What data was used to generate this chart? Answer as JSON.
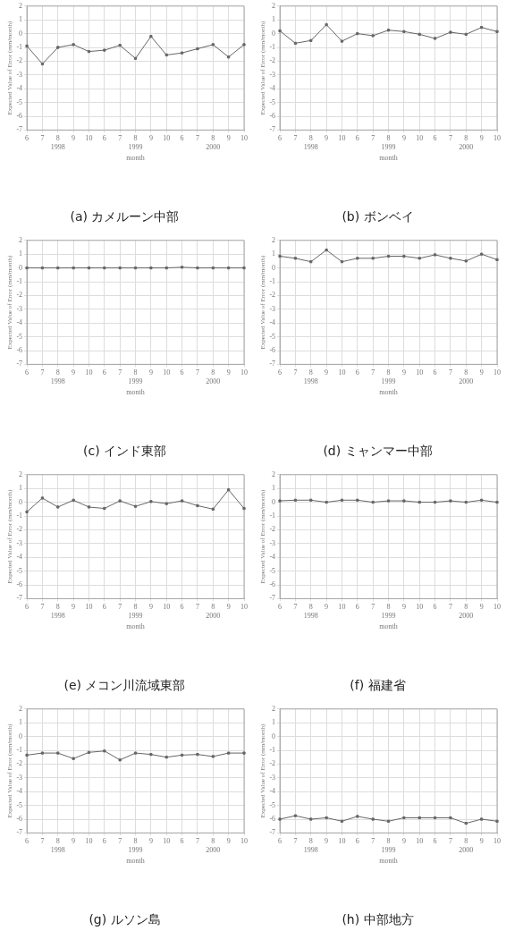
{
  "chart_data": [
    {
      "type": "line",
      "title": "(a) カメルーン中部",
      "xlabel": "month",
      "ylabel": "Expected Value of Error (mm/month)",
      "categories": [
        "6",
        "7",
        "8\n1998",
        "9",
        "10",
        "6",
        "7",
        "8\n1999",
        "9",
        "10",
        "6",
        "7",
        "8\n2000",
        "9",
        "10"
      ],
      "values": [
        -0.9,
        -2.2,
        -1.0,
        -0.8,
        -1.3,
        -1.2,
        -0.85,
        -1.8,
        -0.2,
        -1.55,
        -1.4,
        -1.1,
        -0.8,
        -1.7,
        -0.8
      ],
      "color": "#666666",
      "ylim": [
        -7,
        2
      ],
      "yticks": [
        -7,
        -6,
        -5,
        -4,
        -3,
        -2,
        -1,
        0,
        1,
        2
      ],
      "grid": true,
      "marker": "square"
    },
    {
      "type": "line",
      "title": "(b) ボンベイ",
      "xlabel": "month",
      "ylabel": "Expected Value of Error (mm/month)",
      "categories": [
        "6",
        "7",
        "8\n1998",
        "9",
        "10",
        "6",
        "7",
        "8\n1999",
        "9",
        "10",
        "6",
        "7",
        "8\n2000",
        "9",
        "10"
      ],
      "values": [
        0.2,
        -0.7,
        -0.5,
        0.65,
        -0.55,
        0.0,
        -0.15,
        0.25,
        0.15,
        -0.05,
        -0.35,
        0.1,
        -0.05,
        0.45,
        0.15
      ],
      "color": "#666666",
      "ylim": [
        -7,
        2
      ],
      "yticks": [
        -7,
        -6,
        -5,
        -4,
        -3,
        -2,
        -1,
        0,
        1,
        2
      ],
      "grid": true,
      "marker": "square"
    },
    {
      "type": "line",
      "title": "(c) インド東部",
      "xlabel": "month",
      "ylabel": "Expected Value of Error (mm/month)",
      "categories": [
        "6",
        "7",
        "8\n1998",
        "9",
        "10",
        "6",
        "7",
        "8\n1999",
        "9",
        "10",
        "6",
        "7",
        "8\n2000",
        "9",
        "10"
      ],
      "values": [
        0,
        0,
        0,
        0,
        0,
        0,
        0,
        0,
        0,
        0,
        0.05,
        0,
        0,
        0,
        0
      ],
      "color": "#666666",
      "ylim": [
        -7,
        2
      ],
      "yticks": [
        -7,
        -6,
        -5,
        -4,
        -3,
        -2,
        -1,
        0,
        1,
        2
      ],
      "grid": true,
      "marker": "square"
    },
    {
      "type": "line",
      "title": "(d) ミャンマー中部",
      "xlabel": "month",
      "ylabel": "Expected Value of Error (mm/month)",
      "categories": [
        "6",
        "7",
        "8\n1998",
        "9",
        "10",
        "6",
        "7",
        "8\n1999",
        "9",
        "10",
        "6",
        "7",
        "8\n2000",
        "9",
        "10"
      ],
      "values": [
        0.85,
        0.7,
        0.45,
        1.3,
        0.45,
        0.7,
        0.7,
        0.85,
        0.85,
        0.7,
        0.95,
        0.7,
        0.5,
        1.0,
        0.6
      ],
      "color": "#666666",
      "ylim": [
        -7,
        2
      ],
      "yticks": [
        -7,
        -6,
        -5,
        -4,
        -3,
        -2,
        -1,
        0,
        1,
        2
      ],
      "grid": true,
      "marker": "square"
    },
    {
      "type": "line",
      "title": "(e) メコン川流域東部",
      "xlabel": "month",
      "ylabel": "Expected Value of Error (mm/month)",
      "categories": [
        "6",
        "7",
        "8\n1998",
        "9",
        "10",
        "6",
        "7",
        "8\n1999",
        "9",
        "10",
        "6",
        "7",
        "8\n2000",
        "9",
        "10"
      ],
      "values": [
        -0.7,
        0.3,
        -0.35,
        0.15,
        -0.35,
        -0.45,
        0.1,
        -0.3,
        0.05,
        -0.1,
        0.1,
        -0.25,
        -0.5,
        0.9,
        -0.45
      ],
      "color": "#666666",
      "ylim": [
        -7,
        2
      ],
      "yticks": [
        -7,
        -6,
        -5,
        -4,
        -3,
        -2,
        -1,
        0,
        1,
        2
      ],
      "grid": true,
      "marker": "square"
    },
    {
      "type": "line",
      "title": "(f) 福建省",
      "xlabel": "month",
      "ylabel": "Expected Value of Error (mm/month)",
      "categories": [
        "6",
        "7",
        "8\n1998",
        "9",
        "10",
        "6",
        "7",
        "8\n1999",
        "9",
        "10",
        "6",
        "7",
        "8\n2000",
        "9",
        "10"
      ],
      "values": [
        0.1,
        0.15,
        0.15,
        0,
        0.15,
        0.15,
        0,
        0.1,
        0.1,
        0,
        0,
        0.1,
        0,
        0.15,
        0
      ],
      "color": "#666666",
      "ylim": [
        -7,
        2
      ],
      "yticks": [
        -7,
        -6,
        -5,
        -4,
        -3,
        -2,
        -1,
        0,
        1,
        2
      ],
      "grid": true,
      "marker": "square"
    },
    {
      "type": "line",
      "title": "(g) ルソン島",
      "xlabel": "month",
      "ylabel": "Expected Value of Error (mm/month)",
      "categories": [
        "6",
        "7",
        "8\n1998",
        "9",
        "10",
        "6",
        "7",
        "8\n1999",
        "9",
        "10",
        "6",
        "7",
        "8\n2000",
        "9",
        "10"
      ],
      "values": [
        -1.35,
        -1.2,
        -1.2,
        -1.6,
        -1.15,
        -1.05,
        -1.7,
        -1.2,
        -1.3,
        -1.5,
        -1.35,
        -1.3,
        -1.45,
        -1.2,
        -1.2
      ],
      "color": "#666666",
      "ylim": [
        -7,
        2
      ],
      "yticks": [
        -7,
        -6,
        -5,
        -4,
        -3,
        -2,
        -1,
        0,
        1,
        2
      ],
      "grid": true,
      "marker": "square"
    },
    {
      "type": "line",
      "title": "(h) 中部地方",
      "xlabel": "month",
      "ylabel": "Expected Value of Error (mm/month)",
      "categories": [
        "6",
        "7",
        "8\n1998",
        "9",
        "10",
        "6",
        "7",
        "8\n1999",
        "9",
        "10",
        "6",
        "7",
        "8\n2000",
        "9",
        "10"
      ],
      "values": [
        -6.0,
        -5.75,
        -6.0,
        -5.9,
        -6.15,
        -5.8,
        -6.0,
        -6.15,
        -5.9,
        -5.9,
        -5.9,
        -5.9,
        -6.3,
        -6.0,
        -6.15
      ],
      "color": "#666666",
      "ylim": [
        -7,
        2
      ],
      "yticks": [
        -7,
        -6,
        -5,
        -4,
        -3,
        -2,
        -1,
        0,
        1,
        2
      ],
      "grid": true,
      "marker": "square"
    }
  ]
}
